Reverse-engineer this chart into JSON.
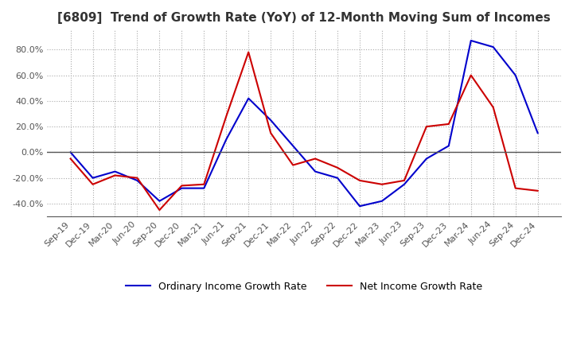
{
  "title": "[6809]  Trend of Growth Rate (YoY) of 12-Month Moving Sum of Incomes",
  "x_labels": [
    "Sep-19",
    "Dec-19",
    "Mar-20",
    "Jun-20",
    "Sep-20",
    "Dec-20",
    "Mar-21",
    "Jun-21",
    "Sep-21",
    "Dec-21",
    "Mar-22",
    "Jun-22",
    "Sep-22",
    "Dec-22",
    "Mar-23",
    "Jun-23",
    "Sep-23",
    "Dec-23",
    "Mar-24",
    "Jun-24",
    "Sep-24",
    "Dec-24"
  ],
  "ordinary_income": [
    0,
    -20,
    -15,
    -22,
    -38,
    -28,
    -28,
    10,
    42,
    25,
    5,
    -15,
    -20,
    -42,
    -38,
    -25,
    -5,
    5,
    87,
    82,
    60,
    15
  ],
  "net_income": [
    -5,
    -25,
    -18,
    -20,
    -45,
    -26,
    -25,
    28,
    78,
    15,
    -10,
    -5,
    -12,
    -22,
    -25,
    -22,
    20,
    22,
    60,
    35,
    -28,
    -30
  ],
  "ylim": [
    -50,
    95
  ],
  "yticks": [
    -40,
    -20,
    0,
    20,
    40,
    60,
    80
  ],
  "line_color_ordinary": "#0000CC",
  "line_color_net": "#CC0000",
  "background_color": "#FFFFFF",
  "legend_ordinary": "Ordinary Income Growth Rate",
  "legend_net": "Net Income Growth Rate",
  "title_fontsize": 11,
  "tick_fontsize": 8,
  "grid_color": "#aaaaaa",
  "grid_style": ":",
  "zero_line_color": "#555555"
}
